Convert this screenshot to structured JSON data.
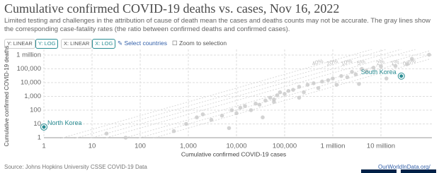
{
  "chart_data": {
    "type": "scatter",
    "title": "Cumulative confirmed COVID-19 deaths vs. cases, Nov 16, 2022",
    "subtitle": "Limited testing and challenges in the attribution of cause of death mean the cases and deaths counts may not be accurate. The gray lines show the corresponding case-fatality rates (the ratio between confirmed deaths and confirmed cases).",
    "x_label": "Cumulative confirmed COVID-19 cases",
    "y_label": "Cumulative confirmed COVID-19 deaths",
    "xscale": "log",
    "yscale": "log",
    "grid": true,
    "xlim": [
      1,
      100000000
    ],
    "ylim": [
      1,
      1000000
    ],
    "xticks": [
      1,
      10,
      100,
      {
        "value": 1000,
        "label": "1,000"
      },
      {
        "value": 10000,
        "label": "10,000"
      },
      {
        "value": 100000,
        "label": "100,000"
      },
      {
        "value": 1000000,
        "label": "1 million"
      },
      {
        "value": 10000000,
        "label": "10 million"
      }
    ],
    "yticks": [
      1,
      10,
      100,
      {
        "value": 1000,
        "label": "1,000"
      },
      {
        "value": 10000,
        "label": "10,000"
      },
      {
        "value": 100000,
        "label": "100,000"
      },
      {
        "value": 1000000,
        "label": "1 million"
      }
    ],
    "ref_lines": [
      {
        "value": 40,
        "label": "40%"
      },
      {
        "value": 20,
        "label": "20%"
      },
      {
        "value": 10,
        "label": "10%"
      },
      {
        "value": 5,
        "label": "5%"
      },
      {
        "value": 2,
        "label": "2%"
      },
      {
        "value": 1,
        "label": "1%"
      },
      {
        "value": 0.5,
        "label": "0.5%"
      }
    ],
    "ref_color": "#d9d9d9",
    "series": [
      {
        "name": "North Korea",
        "color": "#2a8d93",
        "x": [
          1
        ],
        "y": [
          6
        ]
      },
      {
        "name": "South Korea",
        "color": "#2a8d93",
        "x": [
          26500000
        ],
        "y": [
          29800
        ]
      }
    ],
    "background_points": {
      "color": "#c8c8c8",
      "x": [
        5000,
        8000,
        12000,
        15000,
        20000,
        25000,
        30000,
        40000,
        50000,
        60000,
        70000,
        80000,
        100000,
        120000,
        150000,
        200000,
        250000,
        300000,
        400000,
        500000,
        600000,
        800000,
        1000000,
        1200000,
        1500000,
        2000000,
        2500000,
        3000000,
        4000000,
        5000000,
        7000000,
        10000000,
        13000000,
        20000000,
        35000000,
        44000000,
        100000000,
        1500,
        2000,
        3000,
        10000,
        7000,
        500,
        900,
        50,
        20,
        35000,
        200000,
        60000,
        3500000
      ],
      "y": [
        40,
        100,
        150,
        200,
        100,
        300,
        250,
        500,
        800,
        400,
        1200,
        2000,
        1500,
        2500,
        3000,
        5000,
        2000,
        7000,
        9000,
        4000,
        12000,
        15000,
        20000,
        7000,
        30000,
        25000,
        60000,
        40000,
        100000,
        70000,
        120000,
        150000,
        20000,
        160000,
        220000,
        530000,
        1070000,
        30,
        50,
        20,
        60,
        5,
        3,
        10,
        1,
        2,
        30,
        800,
        600,
        8000
      ]
    }
  },
  "controls": {
    "y_linear": "Y: LINEAR",
    "y_log": "Y: LOG",
    "x_linear": "X: LINEAR",
    "x_log": "X: LOG",
    "select": "Select countries",
    "zoom": "Zoom to selection"
  },
  "footer": {
    "source": "Source: Johns Hopkins University CSSE COVID-19 Data",
    "site": "OurWorldInData.org/"
  }
}
